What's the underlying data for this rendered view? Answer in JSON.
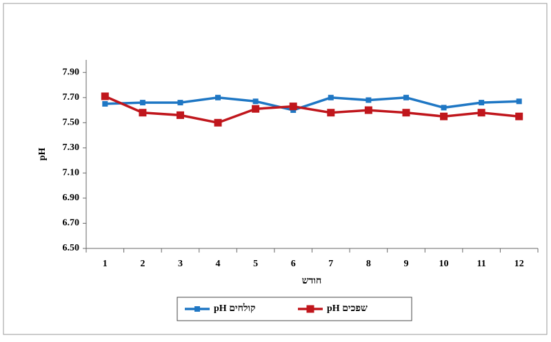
{
  "chart_data": {
    "type": "line",
    "x_label": "חודש",
    "y_label": "pH",
    "categories": [
      "1",
      "2",
      "3",
      "4",
      "5",
      "6",
      "7",
      "8",
      "9",
      "10",
      "11",
      "12"
    ],
    "series": [
      {
        "name": "קולחים pH",
        "color": "#1f77c4",
        "values": [
          7.65,
          7.66,
          7.66,
          7.7,
          7.67,
          7.6,
          7.7,
          7.68,
          7.7,
          7.62,
          7.66,
          7.67
        ]
      },
      {
        "name": "שפכים pH",
        "color": "#c0161c",
        "values": [
          7.71,
          7.58,
          7.56,
          7.5,
          7.61,
          7.63,
          7.58,
          7.6,
          7.58,
          7.55,
          7.58,
          7.55
        ]
      }
    ],
    "ylim": [
      6.5,
      8.0
    ],
    "yticks": [
      {
        "value": 6.5,
        "label": "6.50"
      },
      {
        "value": 6.7,
        "label": "6.70"
      },
      {
        "value": 6.9,
        "label": "6.90"
      },
      {
        "value": 7.1,
        "label": "7.10"
      },
      {
        "value": 7.3,
        "label": "7.30"
      },
      {
        "value": 7.5,
        "label": "7.50"
      },
      {
        "value": 7.7,
        "label": "7.70"
      },
      {
        "value": 7.9,
        "label": "7.90"
      }
    ],
    "grid": false,
    "legend": "bottom"
  }
}
